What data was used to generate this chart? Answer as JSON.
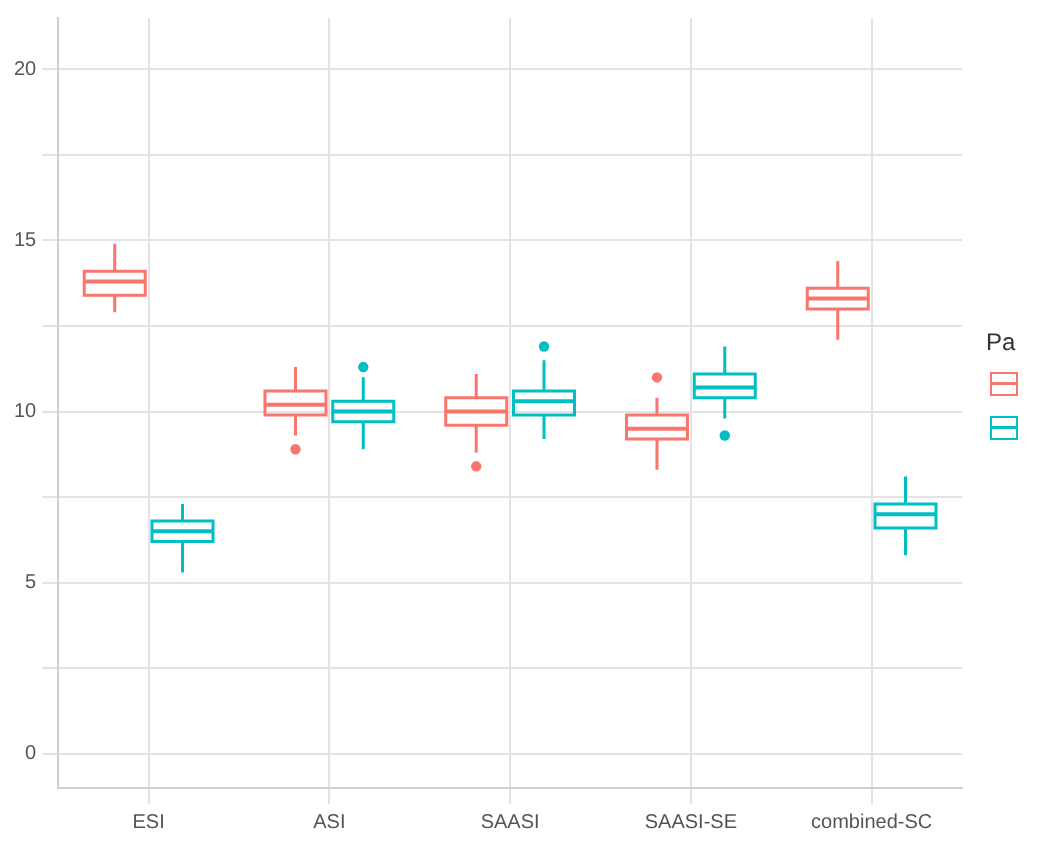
{
  "chart_data": {
    "type": "box",
    "legend_title": "Pa",
    "grid": true,
    "categories": [
      "ESI",
      "ASI",
      "SAASI",
      "SAASI-SE",
      "combined-SC"
    ],
    "ylim": [
      -1,
      21.5
    ],
    "yticks": [
      0,
      {
        "value": 2.5,
        "label": null
      },
      5,
      {
        "value": 7.5,
        "label": null
      },
      10,
      {
        "value": 12.5,
        "label": null
      },
      15,
      {
        "value": 17.5,
        "label": null
      },
      20
    ],
    "series": [
      {
        "color": "#f8766d",
        "boxes": [
          {
            "low": 12.9,
            "q1": 13.4,
            "median": 13.8,
            "q3": 14.1,
            "high": 14.9
          },
          {
            "low": 9.3,
            "q1": 9.9,
            "median": 10.2,
            "q3": 10.6,
            "high": 11.3,
            "outliers": [
              8.9
            ]
          },
          {
            "low": 8.8,
            "q1": 9.6,
            "median": 10.0,
            "q3": 10.4,
            "high": 11.1,
            "outliers": [
              8.4
            ]
          },
          {
            "low": 8.3,
            "q1": 9.2,
            "median": 9.5,
            "q3": 9.9,
            "high": 10.4,
            "outliers": [
              11.0
            ]
          },
          {
            "low": 12.1,
            "q1": 13.0,
            "median": 13.3,
            "q3": 13.6,
            "high": 14.4
          }
        ]
      },
      {
        "color": "#00bfc4",
        "boxes": [
          {
            "low": 5.3,
            "q1": 6.2,
            "median": 6.5,
            "q3": 6.8,
            "high": 7.3
          },
          {
            "low": 8.9,
            "q1": 9.7,
            "median": 10.0,
            "q3": 10.3,
            "high": 11.0,
            "outliers": [
              11.3
            ]
          },
          {
            "low": 9.2,
            "q1": 9.9,
            "median": 10.3,
            "q3": 10.6,
            "high": 11.5,
            "outliers": [
              11.9
            ]
          },
          {
            "low": 9.8,
            "q1": 10.4,
            "median": 10.7,
            "q3": 11.1,
            "high": 11.9,
            "outliers": [
              9.3
            ]
          },
          {
            "low": 5.8,
            "q1": 6.6,
            "median": 7.0,
            "q3": 7.3,
            "high": 8.1
          }
        ]
      }
    ]
  }
}
